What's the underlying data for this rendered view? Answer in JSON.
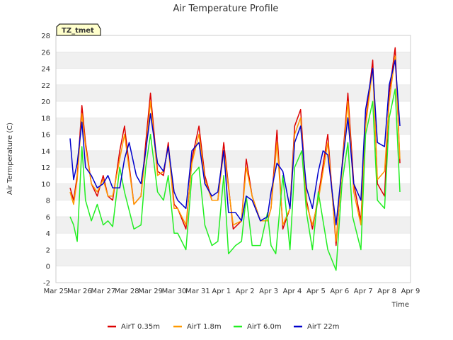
{
  "chart_data": {
    "type": "line",
    "title": "Air Temperature Profile",
    "xlabel": "Time",
    "ylabel": "Air Termperature (C)",
    "ylim": [
      -2,
      28
    ],
    "yticks": [
      -2,
      0,
      2,
      4,
      6,
      8,
      10,
      12,
      14,
      16,
      18,
      20,
      22,
      24,
      26,
      28
    ],
    "xlim": [
      0,
      15
    ],
    "xticks": [
      {
        "x": 0,
        "label": "Mar 25"
      },
      {
        "x": 1,
        "label": "Mar 26"
      },
      {
        "x": 2,
        "label": "Mar 27"
      },
      {
        "x": 3,
        "label": "Mar 28"
      },
      {
        "x": 4,
        "label": "Mar 29"
      },
      {
        "x": 5,
        "label": "Mar 30"
      },
      {
        "x": 6,
        "label": "Mar 31"
      },
      {
        "x": 7,
        "label": "Apr 1"
      },
      {
        "x": 8,
        "label": "Apr 2"
      },
      {
        "x": 9,
        "label": "Apr 3"
      },
      {
        "x": 10,
        "label": "Apr 4"
      },
      {
        "x": 11,
        "label": "Apr 5"
      },
      {
        "x": 12,
        "label": "Apr 6"
      },
      {
        "x": 13,
        "label": "Apr 7"
      },
      {
        "x": 14,
        "label": "Apr 8"
      },
      {
        "x": 15,
        "label": "Apr 9"
      }
    ],
    "grid": "horizontal bands",
    "legend_position": "bottom",
    "annotation": "TZ_tmet",
    "series": [
      {
        "name": "AirT 0.35m",
        "color": "#dd0000",
        "x": [
          0.6,
          0.75,
          0.9,
          1.1,
          1.25,
          1.5,
          1.75,
          2.0,
          2.2,
          2.4,
          2.7,
          2.9,
          3.3,
          3.6,
          3.8,
          4.0,
          4.3,
          4.55,
          4.75,
          5.0,
          5.15,
          5.5,
          5.75,
          6.05,
          6.3,
          6.6,
          6.85,
          7.1,
          7.5,
          7.85,
          8.05,
          8.3,
          8.65,
          8.95,
          9.1,
          9.35,
          9.6,
          9.9,
          10.1,
          10.35,
          10.6,
          10.85,
          11.1,
          11.5,
          11.85,
          12.1,
          12.35,
          12.6,
          12.9,
          13.1,
          13.4,
          13.6,
          13.9,
          14.1,
          14.35,
          14.55
        ],
        "y": [
          9.5,
          8,
          11,
          19.5,
          15,
          10,
          8.5,
          11,
          8.5,
          8,
          14,
          17,
          7.5,
          8.5,
          15,
          21,
          11.5,
          11,
          15,
          7.5,
          7,
          4.5,
          13,
          17,
          11,
          8,
          8,
          15,
          4.5,
          5.5,
          13,
          8.5,
          5.5,
          5.5,
          7,
          16.5,
          4.5,
          7,
          17,
          19,
          8,
          4.5,
          8.5,
          16,
          2.5,
          12,
          21,
          10,
          5.5,
          17.5,
          25,
          10,
          8.5,
          21,
          26.5,
          12.5
        ]
      },
      {
        "name": "AirT 1.8m",
        "color": "#ff9900",
        "x": [
          0.6,
          0.75,
          0.9,
          1.1,
          1.25,
          1.5,
          1.75,
          2.0,
          2.2,
          2.4,
          2.7,
          2.9,
          3.3,
          3.6,
          3.8,
          4.0,
          4.3,
          4.55,
          4.75,
          5.0,
          5.15,
          5.5,
          5.75,
          6.05,
          6.3,
          6.6,
          6.85,
          7.1,
          7.5,
          7.85,
          8.05,
          8.3,
          8.65,
          8.95,
          9.1,
          9.35,
          9.6,
          9.9,
          10.1,
          10.35,
          10.6,
          10.85,
          11.1,
          11.5,
          11.85,
          12.1,
          12.35,
          12.6,
          12.9,
          13.1,
          13.4,
          13.6,
          13.9,
          14.1,
          14.35,
          14.55
        ],
        "y": [
          9,
          7.5,
          10.5,
          18.5,
          14.5,
          10,
          9,
          10.5,
          8.5,
          8.5,
          13,
          16,
          7.5,
          8.5,
          14,
          20,
          11,
          11.5,
          14.5,
          7,
          7,
          5,
          12.5,
          16,
          10.5,
          8,
          8,
          14,
          5,
          5.5,
          12,
          8.5,
          5.5,
          5.5,
          7,
          15,
          5,
          7,
          16,
          18,
          7.5,
          5,
          8,
          15,
          3,
          11.5,
          20,
          9,
          5,
          17,
          24,
          10.5,
          11.5,
          20,
          25.5,
          13
        ]
      },
      {
        "name": "AirT 6.0m",
        "color": "#22ee22",
        "x": [
          0.6,
          0.75,
          0.9,
          1.1,
          1.25,
          1.5,
          1.75,
          2.0,
          2.2,
          2.4,
          2.7,
          2.9,
          3.3,
          3.6,
          3.8,
          4.0,
          4.3,
          4.55,
          4.75,
          5.0,
          5.15,
          5.5,
          5.75,
          6.05,
          6.3,
          6.6,
          6.85,
          7.1,
          7.3,
          7.6,
          7.85,
          8.05,
          8.3,
          8.65,
          8.95,
          9.1,
          9.3,
          9.6,
          9.9,
          10.1,
          10.4,
          10.6,
          10.85,
          11.1,
          11.5,
          11.85,
          12.1,
          12.35,
          12.55,
          12.9,
          13.1,
          13.4,
          13.6,
          13.9,
          14.1,
          14.35,
          14.55
        ],
        "y": [
          6,
          5,
          3,
          14.5,
          8,
          5.5,
          7.5,
          5,
          5.5,
          4.8,
          12,
          9,
          4.5,
          5,
          12,
          16,
          9,
          8,
          11,
          4,
          4,
          2,
          11,
          12,
          5,
          2.5,
          3,
          11,
          1.5,
          2.5,
          3,
          8.5,
          2.5,
          2.5,
          6.5,
          2.5,
          1.5,
          11,
          2,
          12,
          14,
          6.5,
          2,
          9,
          2,
          -0.5,
          10,
          15,
          6,
          2,
          16,
          20,
          8,
          7,
          18,
          21.5,
          9
        ]
      },
      {
        "name": "AirT 22m",
        "color": "#0000cc",
        "x": [
          0.6,
          0.75,
          0.9,
          1.1,
          1.25,
          1.5,
          1.75,
          2.0,
          2.2,
          2.4,
          2.7,
          2.9,
          3.1,
          3.4,
          3.6,
          3.8,
          4.0,
          4.3,
          4.55,
          4.75,
          5.0,
          5.15,
          5.5,
          5.75,
          6.05,
          6.3,
          6.6,
          6.85,
          7.1,
          7.3,
          7.6,
          7.85,
          8.05,
          8.3,
          8.65,
          8.95,
          9.1,
          9.35,
          9.6,
          9.9,
          10.1,
          10.35,
          10.6,
          10.85,
          11.1,
          11.3,
          11.5,
          11.85,
          12.1,
          12.35,
          12.6,
          12.9,
          13.1,
          13.4,
          13.6,
          13.9,
          14.1,
          14.35,
          14.55
        ],
        "y": [
          15.5,
          10.5,
          12.5,
          17.5,
          12,
          11,
          9.5,
          10,
          11,
          9.5,
          9.5,
          13,
          15,
          11,
          10,
          14,
          18.5,
          12.5,
          11.5,
          14.5,
          9,
          8,
          7,
          14,
          15,
          10,
          8.5,
          9,
          14,
          6.5,
          6.5,
          5.5,
          8.5,
          8,
          5.5,
          6,
          9,
          12.5,
          11.5,
          7,
          15,
          17,
          9.5,
          7,
          11.5,
          14,
          13.5,
          5,
          12,
          18,
          10,
          8,
          19,
          24,
          15,
          14.5,
          22,
          25,
          17
        ]
      }
    ]
  }
}
